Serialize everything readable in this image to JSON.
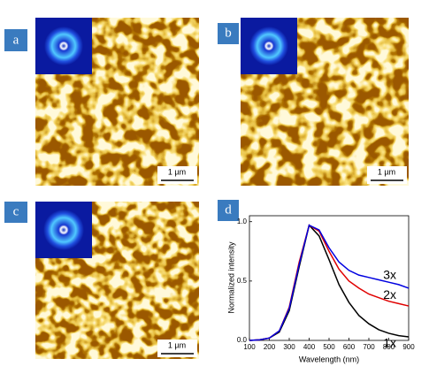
{
  "panels": [
    {
      "label": "a",
      "scale_bar": "1 µm"
    },
    {
      "label": "b",
      "scale_bar": "1 µm"
    },
    {
      "label": "c",
      "scale_bar": "1 µm"
    },
    {
      "label": "d"
    }
  ],
  "chart_data": {
    "type": "line",
    "x_label": "Wavelength (nm)",
    "y_label": "Normalized intensity",
    "x": [
      100,
      150,
      200,
      250,
      300,
      350,
      400,
      450,
      500,
      550,
      600,
      650,
      700,
      750,
      800,
      850,
      900
    ],
    "series": [
      {
        "name": "1x",
        "color": "#000000",
        "values": [
          0,
          0.005,
          0.02,
          0.07,
          0.25,
          0.62,
          0.97,
          0.88,
          0.68,
          0.47,
          0.32,
          0.21,
          0.14,
          0.09,
          0.06,
          0.04,
          0.03
        ]
      },
      {
        "name": "2x",
        "color": "#e00000",
        "values": [
          0,
          0.005,
          0.02,
          0.08,
          0.28,
          0.66,
          0.97,
          0.92,
          0.75,
          0.6,
          0.5,
          0.44,
          0.39,
          0.36,
          0.33,
          0.31,
          0.29
        ]
      },
      {
        "name": "3x",
        "color": "#0000e0",
        "values": [
          0,
          0.005,
          0.02,
          0.08,
          0.27,
          0.64,
          0.97,
          0.93,
          0.78,
          0.66,
          0.59,
          0.55,
          0.53,
          0.51,
          0.49,
          0.47,
          0.44
        ]
      }
    ],
    "xlim": [
      100,
      900
    ],
    "ylim": [
      0,
      1.05
    ],
    "xticks": [
      100,
      200,
      300,
      400,
      500,
      600,
      700,
      800,
      900
    ],
    "yticks": [
      {
        "value": 0,
        "label": "0.0"
      },
      {
        "value": 0.5,
        "label": "0.5"
      },
      {
        "value": 1,
        "label": "1.0"
      }
    ]
  }
}
